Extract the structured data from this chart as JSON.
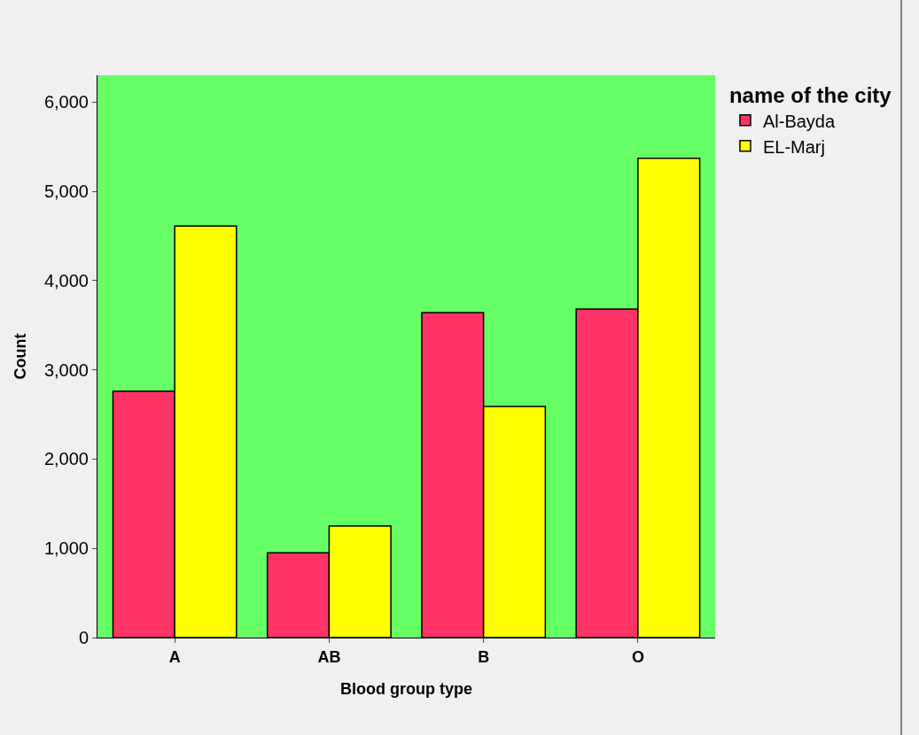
{
  "chart_data": {
    "type": "bar",
    "xlabel": "Blood group type",
    "ylabel": "Count",
    "legend_title": "name of the city",
    "categories": [
      "A",
      "AB",
      "B",
      "O"
    ],
    "series": [
      {
        "name": "Al-Bayda",
        "color": "#ff3366",
        "values": [
          2760,
          950,
          3640,
          3680
        ]
      },
      {
        "name": "EL-Marj",
        "color": "#ffff00",
        "values": [
          4610,
          1250,
          2590,
          5370
        ]
      }
    ],
    "ylim": [
      0,
      6300
    ],
    "yticks": [
      0,
      {
        "value": 1000,
        "label": "1,000"
      },
      {
        "value": 2000,
        "label": "2,000"
      },
      {
        "value": 3000,
        "label": "3,000"
      },
      {
        "value": 4000,
        "label": "4,000"
      },
      {
        "value": 5000,
        "label": "5,000"
      },
      {
        "value": 6000,
        "label": "6,000"
      }
    ],
    "grid": false,
    "legend": "top right"
  }
}
